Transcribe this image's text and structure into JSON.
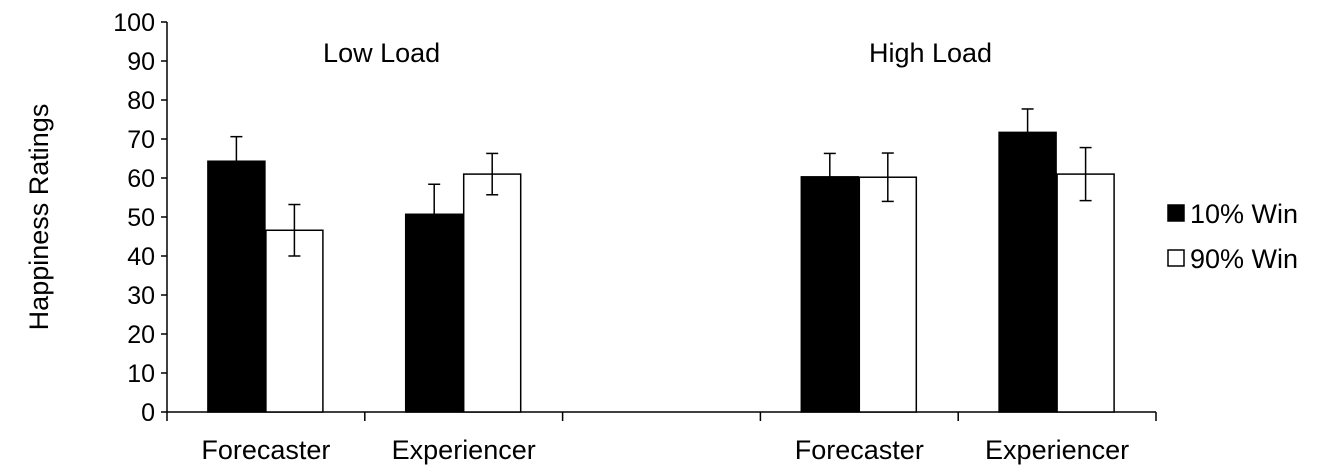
{
  "chart_data": {
    "type": "bar",
    "title": "",
    "ylabel": "Happiness Ratings",
    "xlabel": "",
    "ylim": [
      0,
      100
    ],
    "yticks": [
      0,
      10,
      20,
      30,
      40,
      50,
      60,
      70,
      80,
      90,
      100
    ],
    "groups": [
      {
        "label": "Low Load",
        "categories": [
          "Forecaster",
          "Experiencer"
        ]
      },
      {
        "label": "High Load",
        "categories": [
          "Forecaster",
          "Experiencer"
        ]
      }
    ],
    "series": [
      {
        "name": "10% Win",
        "color": "#000000",
        "values": [
          64.3,
          50.7,
          60.3,
          71.7
        ],
        "errors": [
          6.3,
          7.7,
          6.0,
          6.0
        ]
      },
      {
        "name": "90% Win",
        "color": "#ffffff",
        "values": [
          46.6,
          61.0,
          60.2,
          61.0
        ],
        "errors": [
          6.6,
          5.3,
          6.2,
          6.8
        ]
      }
    ],
    "legend_position": "right",
    "grid": false
  }
}
